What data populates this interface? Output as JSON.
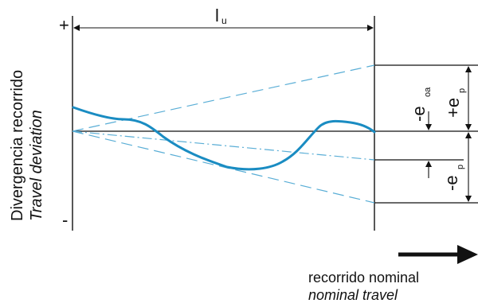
{
  "diagram": {
    "y_axis_label": "Divergencia recorrido",
    "y_axis_label_italic": "Travel deviation",
    "plus_sign": "+",
    "minus_sign": "-",
    "length_label": "l",
    "length_subscript": "u",
    "e_oa_label": "-e",
    "e_oa_subscript": "oa",
    "plus_ep_label": "+e",
    "plus_ep_subscript": "p",
    "minus_ep_label": "-e",
    "minus_ep_subscript": "p",
    "x_label": "recorrido nominal",
    "x_label_italic": "nominal travel",
    "colors": {
      "curve": "#1a8cc2",
      "dashed": "#5aaed6",
      "lines": "#111111"
    }
  }
}
